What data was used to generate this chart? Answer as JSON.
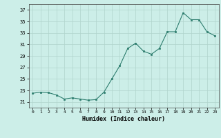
{
  "x": [
    0,
    1,
    2,
    3,
    4,
    5,
    6,
    7,
    8,
    9,
    10,
    11,
    12,
    13,
    14,
    15,
    16,
    17,
    18,
    19,
    20,
    21,
    22,
    23
  ],
  "y": [
    22.5,
    22.7,
    22.6,
    22.2,
    21.5,
    21.7,
    21.5,
    21.3,
    21.4,
    22.7,
    25.0,
    27.3,
    30.3,
    31.2,
    29.8,
    29.3,
    30.3,
    33.2,
    33.2,
    36.5,
    35.3,
    35.3,
    33.2,
    32.5
  ],
  "line_color": "#2d7d6e",
  "marker_color": "#2d7d6e",
  "bg_color": "#cceee8",
  "grid_color": "#b0d4cc",
  "xlabel": "Humidex (Indice chaleur)",
  "ylim": [
    20,
    38
  ],
  "xlim": [
    -0.5,
    23.5
  ],
  "yticks": [
    21,
    23,
    25,
    27,
    29,
    31,
    33,
    35,
    37
  ],
  "xticks": [
    0,
    1,
    2,
    3,
    4,
    5,
    6,
    7,
    8,
    9,
    10,
    11,
    12,
    13,
    14,
    15,
    16,
    17,
    18,
    19,
    20,
    21,
    22,
    23
  ]
}
